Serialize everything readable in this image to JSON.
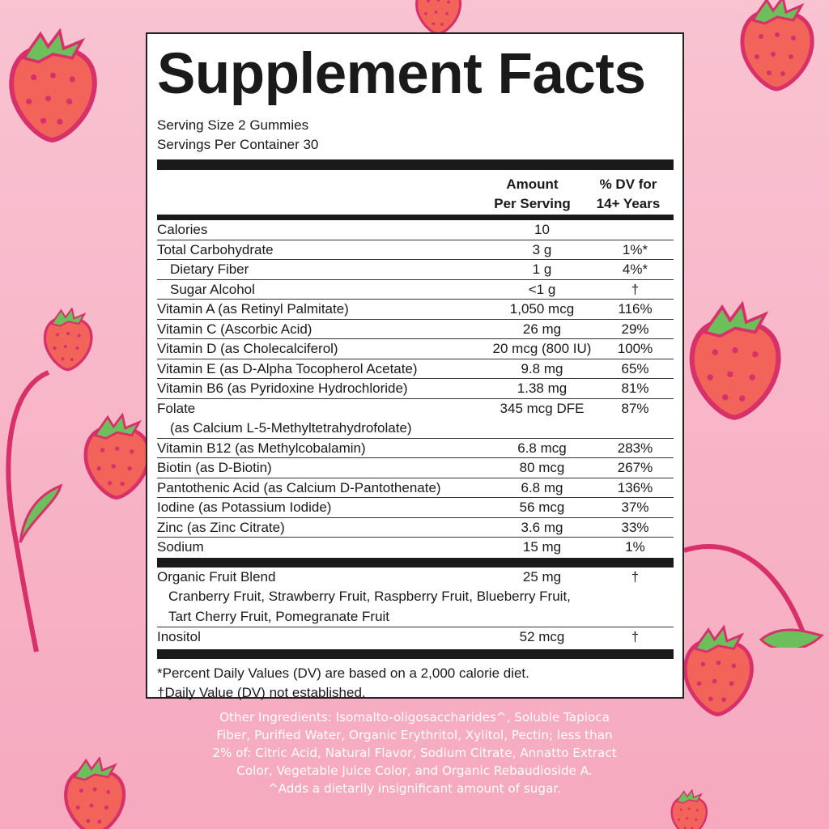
{
  "label": {
    "title": "Supplement Facts",
    "serving_size": "Serving Size 2 Gummies",
    "servings_per_container": "Servings Per Container 30",
    "header": {
      "amount_line1": "Amount",
      "amount_line2": "Per Serving",
      "dv_line1": "% DV for",
      "dv_line2": "14+ Years"
    },
    "rows": [
      {
        "name": "Calories",
        "amount": "10",
        "dv": ""
      },
      {
        "name": "Total Carbohydrate",
        "amount": "3 g",
        "dv": "1%*"
      },
      {
        "name": "Dietary Fiber",
        "amount": "1 g",
        "dv": "4%*",
        "indent": true
      },
      {
        "name": "Sugar Alcohol",
        "amount": "<1 g",
        "dv": "†",
        "indent": true
      },
      {
        "name": "Vitamin A (as Retinyl Palmitate)",
        "amount": "1,050 mcg",
        "dv": "116%"
      },
      {
        "name": "Vitamin C (Ascorbic Acid)",
        "amount": "26 mg",
        "dv": "29%"
      },
      {
        "name": "Vitamin D (as Cholecalciferol)",
        "amount": "20 mcg (800 IU)",
        "dv": "100%"
      },
      {
        "name": "Vitamin E (as D-Alpha Tocopherol Acetate)",
        "amount": "9.8 mg",
        "dv": "65%"
      },
      {
        "name": "Vitamin B6 (as Pyridoxine Hydrochloride)",
        "amount": "1.38 mg",
        "dv": "81%"
      },
      {
        "name": "Folate",
        "sub": "(as Calcium L-5-Methyltetrahydrofolate)",
        "amount": "345 mcg DFE",
        "dv": "87%"
      },
      {
        "name": "Vitamin B12 (as Methylcobalamin)",
        "amount": "6.8 mcg",
        "dv": "283%"
      },
      {
        "name": "Biotin (as D-Biotin)",
        "amount": "80 mcg",
        "dv": "267%"
      },
      {
        "name": "Pantothenic Acid (as Calcium D-Pantothenate)",
        "amount": "6.8 mg",
        "dv": "136%"
      },
      {
        "name": "Iodine (as Potassium Iodide)",
        "amount": "56 mcg",
        "dv": "37%"
      },
      {
        "name": "Zinc (as Zinc Citrate)",
        "amount": "3.6 mg",
        "dv": "33%"
      },
      {
        "name": "Sodium",
        "amount": "15 mg",
        "dv": "1%"
      }
    ],
    "blend": {
      "name": "Organic Fruit Blend",
      "amount": "25 mg",
      "dv": "†",
      "line1": "Cranberry Fruit, Strawberry Fruit, Raspberry Fruit, Blueberry Fruit,",
      "line2": "Tart Cherry Fruit, Pomegranate Fruit"
    },
    "inositol": {
      "name": "Inositol",
      "amount": "52 mcg",
      "dv": "†"
    },
    "footnote1": "*Percent Daily Values (DV) are based on a 2,000 calorie diet.",
    "footnote2": "†Daily Value (DV) not established."
  },
  "other_ingredients": [
    "Other Ingredients: Isomalto-oligosaccharides^, Soluble Tapioca",
    "Fiber, Purified Water, Organic Erythritol, Xylitol, Pectin; less than",
    "2% of: Citric Acid, Natural Flavor, Sodium Citrate, Annatto Extract",
    "Color, Vegetable Juice Color, and Organic Rebaudioside A.",
    "^Adds a dietarily insignificant amount of sugar."
  ],
  "colors": {
    "background": "#f7b3c8",
    "strawberry": "#f2645a",
    "outline": "#d8306a",
    "leaf": "#6cbf5a"
  }
}
